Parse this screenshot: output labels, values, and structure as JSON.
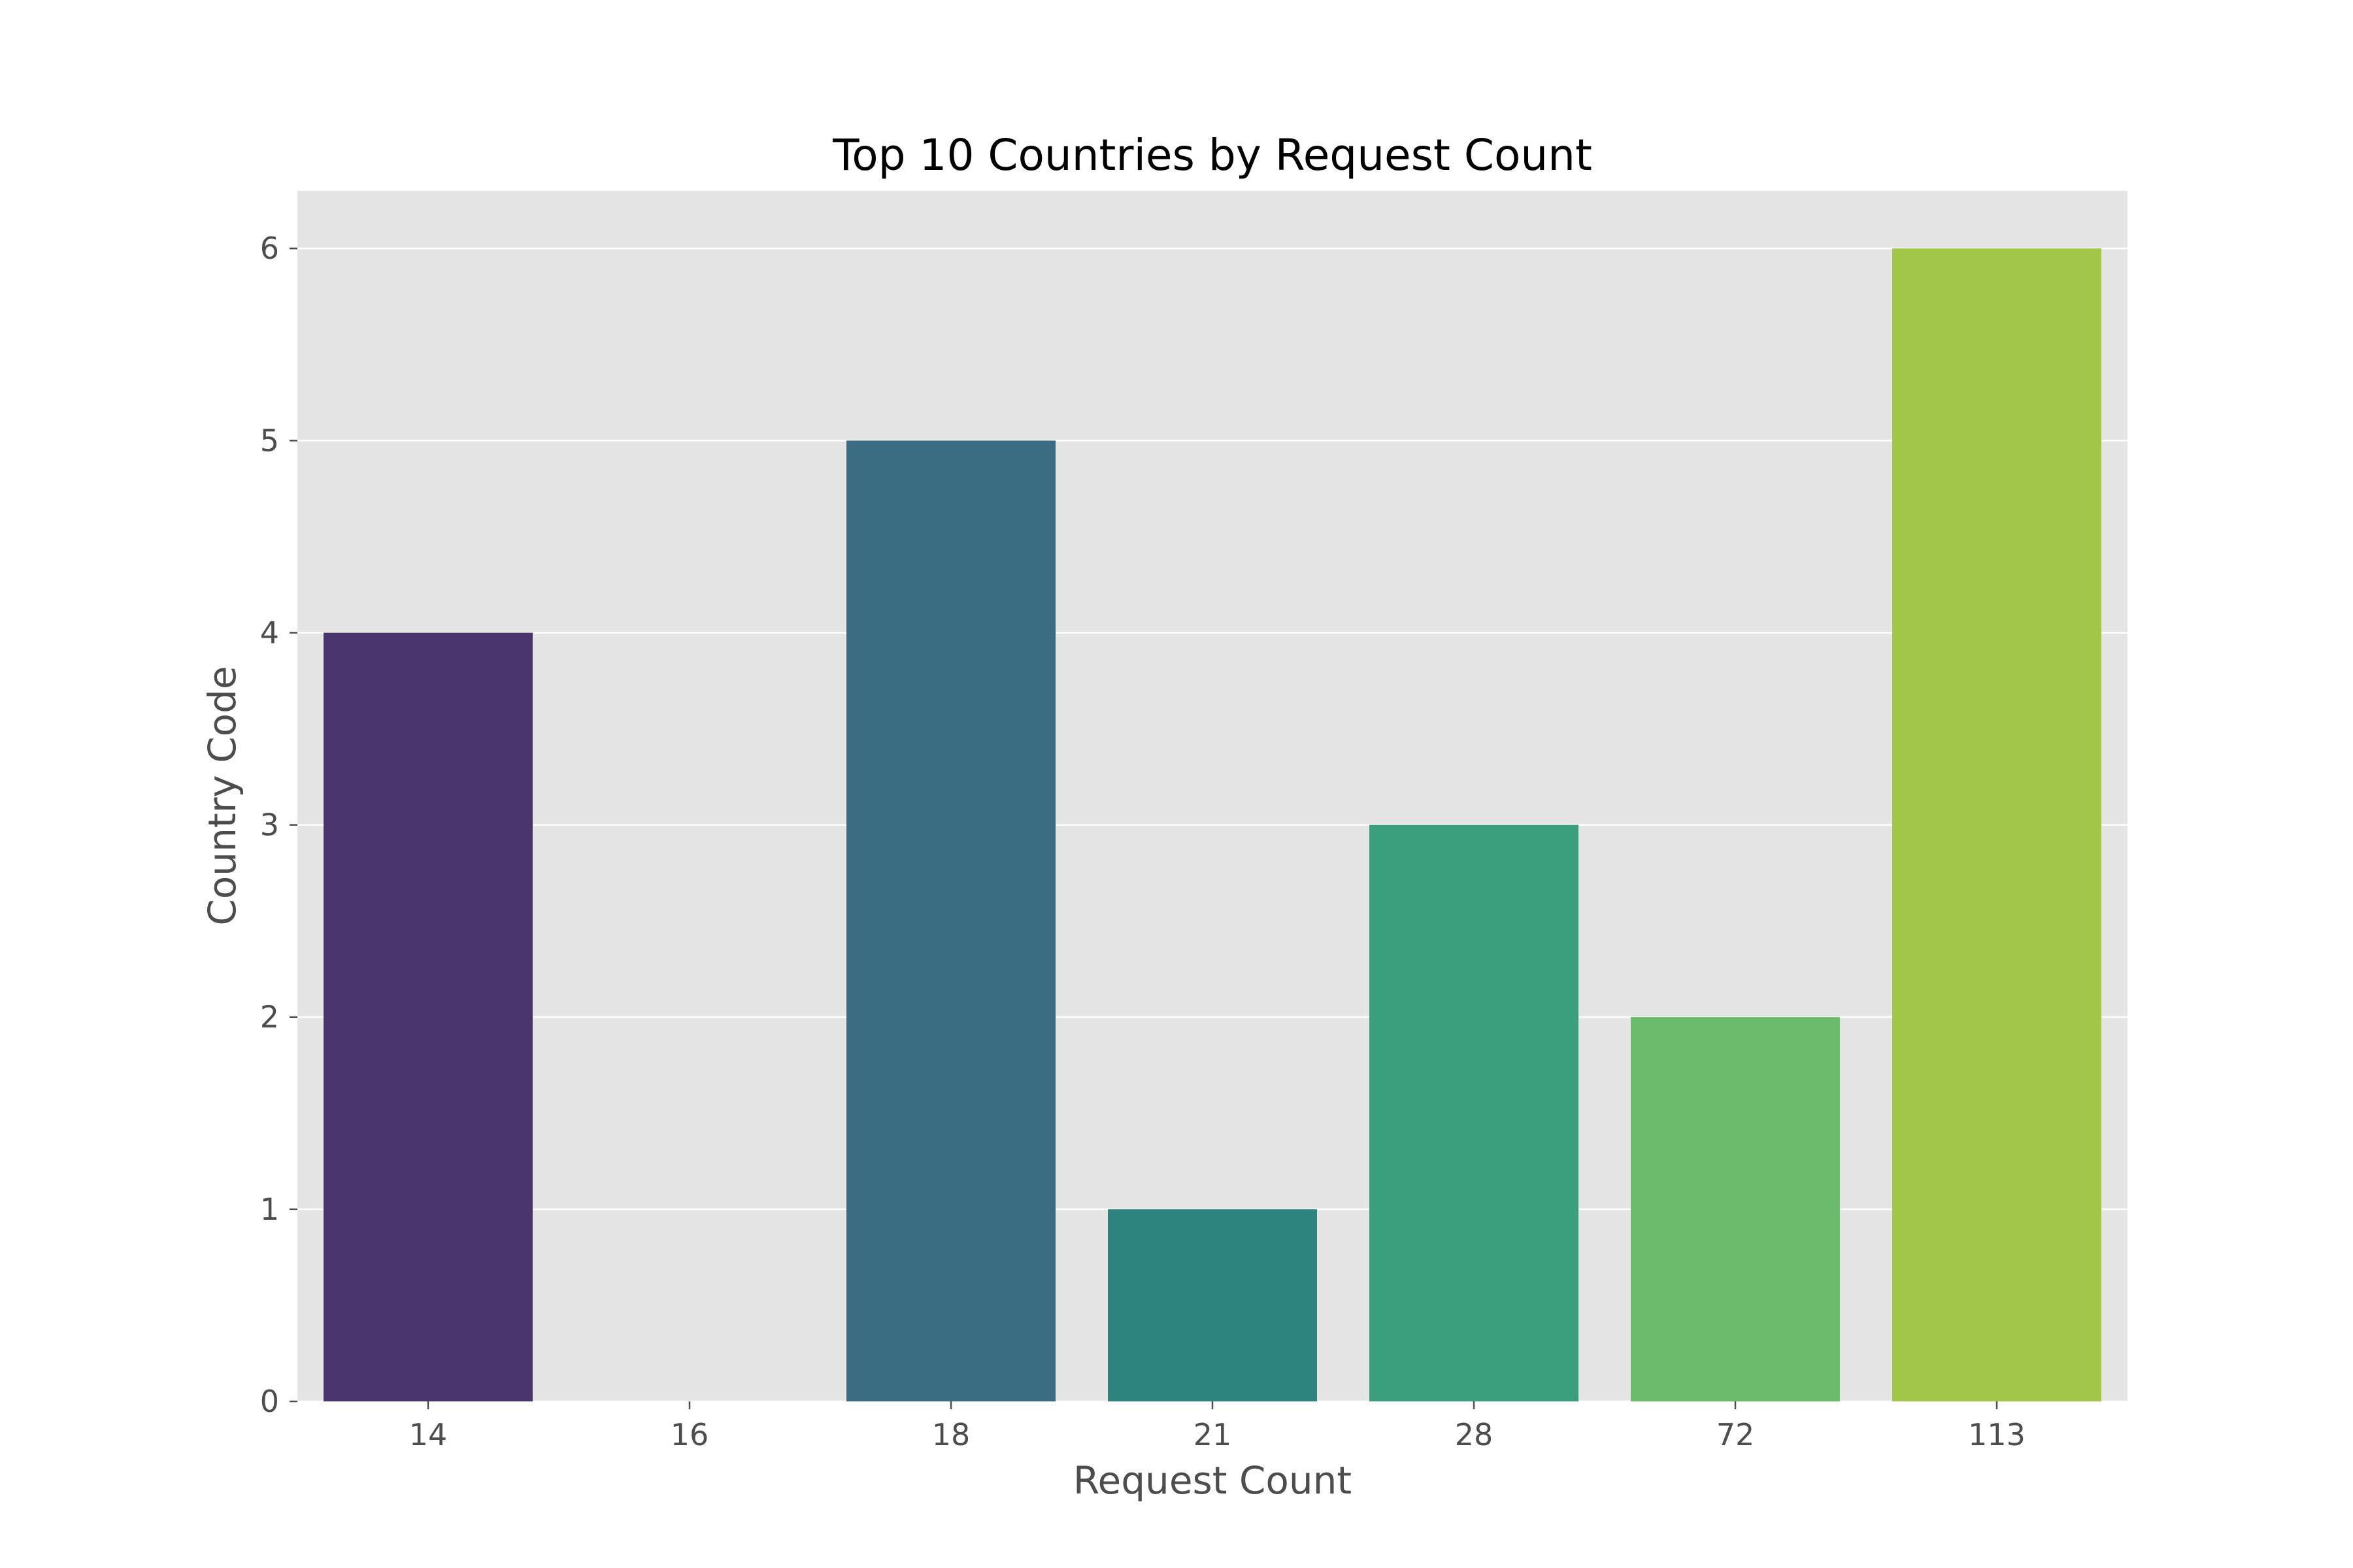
{
  "chart_data": {
    "type": "bar",
    "title": "Top 10 Countries by Request Count",
    "xlabel": "Request Count",
    "ylabel": "Country Code",
    "categories": [
      "14",
      "16",
      "18",
      "21",
      "28",
      "72",
      "113"
    ],
    "values": [
      4,
      0,
      5,
      1,
      3,
      2,
      6
    ],
    "colors": [
      "#4a366f",
      "#443b84",
      "#3a6d81",
      "#2e8280",
      "#3b9f7e",
      "#6cbb6c",
      "#a2c748"
    ],
    "yticks": [
      "0",
      "1",
      "2",
      "3",
      "4",
      "5",
      "6"
    ],
    "ylim": [
      0,
      6.3
    ],
    "grid": true,
    "background": "#e5e5e5",
    "grid_color": "#ffffff"
  }
}
